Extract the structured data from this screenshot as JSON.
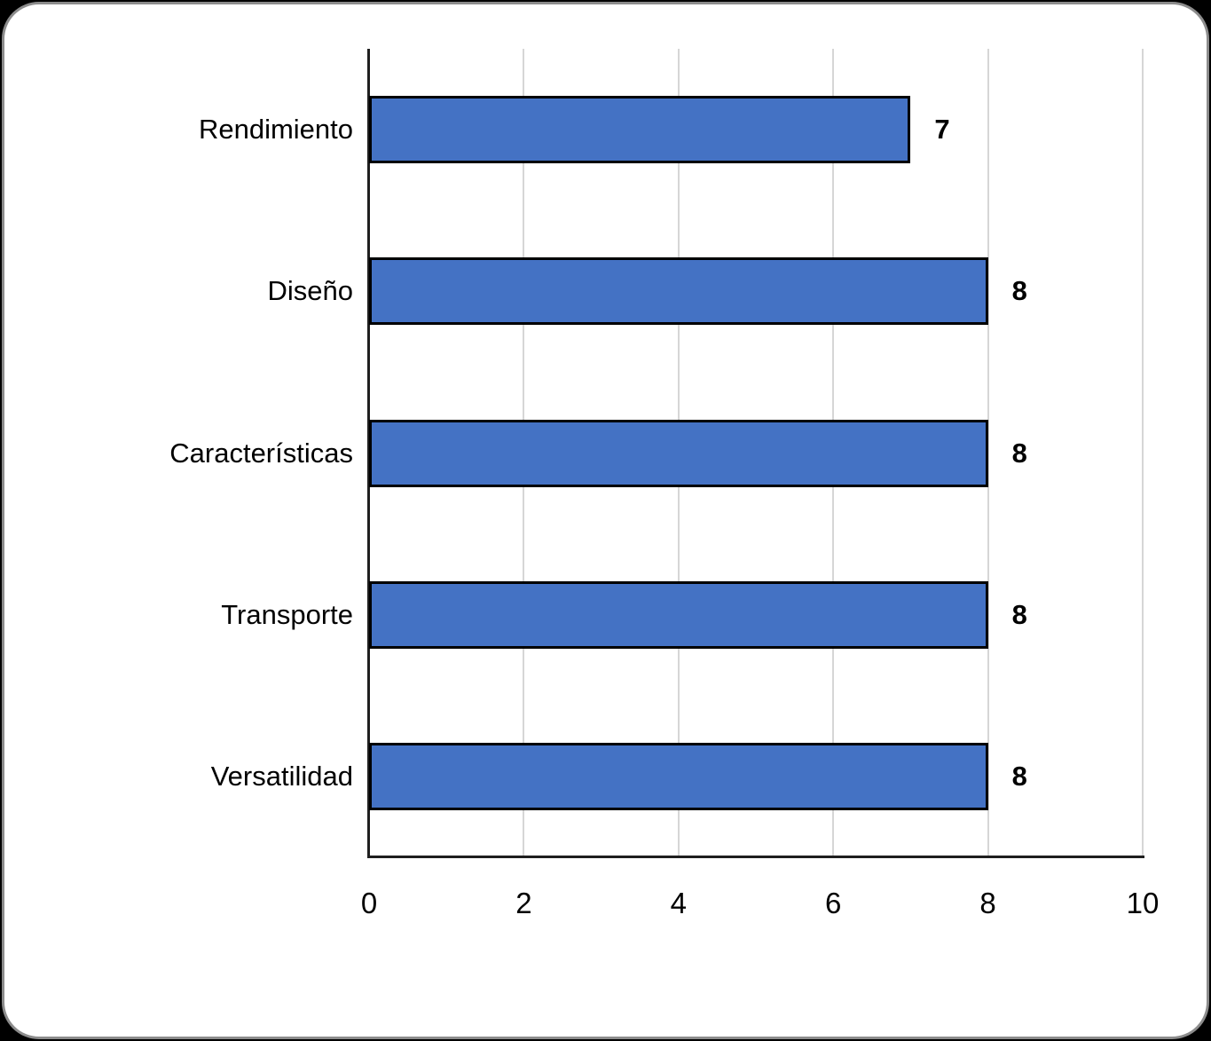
{
  "chart_data": {
    "type": "bar",
    "orientation": "horizontal",
    "title": "",
    "xlabel": "",
    "ylabel": "",
    "categories": [
      "Rendimiento",
      "Diseño",
      "Características",
      "Transporte",
      "Versatilidad"
    ],
    "values": [
      7,
      8,
      8,
      8,
      8
    ],
    "data_labels": [
      "7",
      "8",
      "8",
      "8",
      "8"
    ],
    "xlim": [
      0,
      10
    ],
    "xticks": [
      0,
      2,
      4,
      6,
      8,
      10
    ],
    "grid": "vertical-gridlines-only",
    "legend": "none",
    "colors": {
      "bar_fill": "#4472C4",
      "bar_border": "#000000",
      "gridline": "#D6D6D6",
      "axis_line": "#1F1F1F",
      "text": "#000000",
      "card_background": "#FFFFFF",
      "card_border": "#8C8C8C",
      "page_background": "#000000"
    }
  }
}
